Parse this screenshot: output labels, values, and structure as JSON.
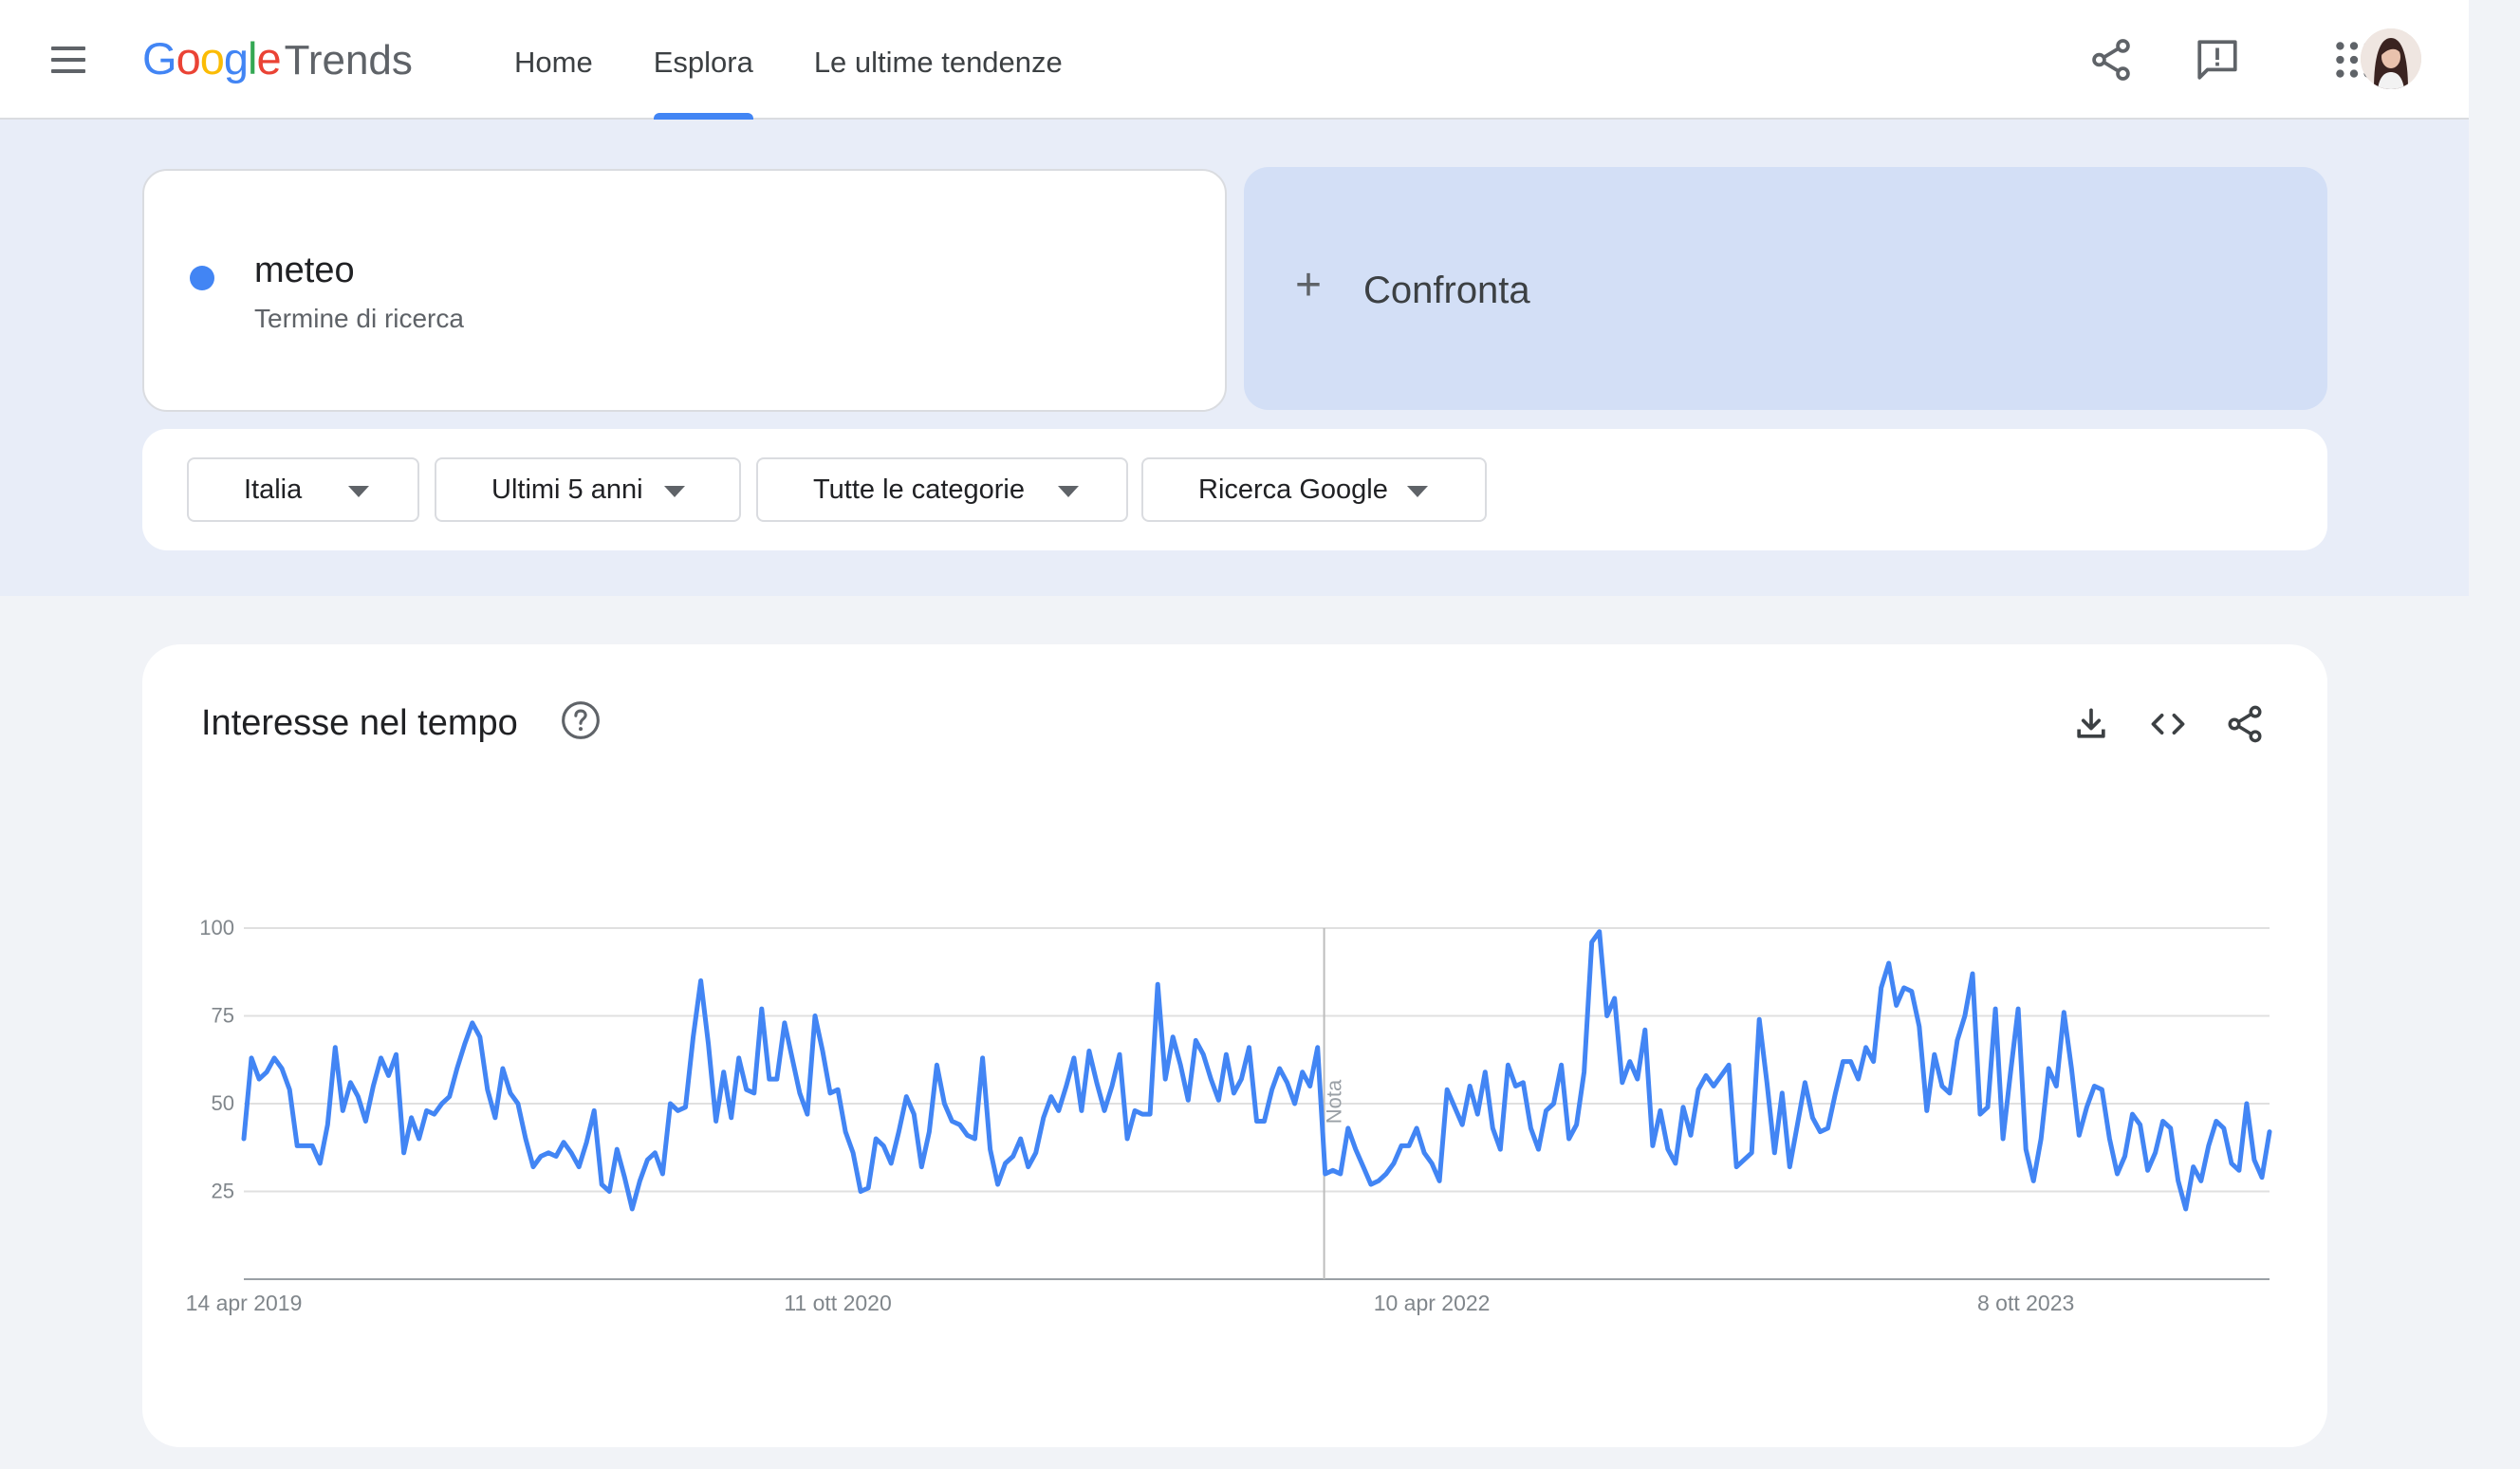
{
  "header": {
    "logo_google": "Google",
    "logo_trends": "Trends",
    "nav": [
      {
        "label": "Home",
        "active": false
      },
      {
        "label": "Esplora",
        "active": true
      },
      {
        "label": "Le ultime tendenze",
        "active": false
      }
    ],
    "icons": [
      "menu-icon",
      "share-icon",
      "feedback-icon",
      "apps-grid-icon",
      "avatar"
    ]
  },
  "search": {
    "term": "meteo",
    "term_type": "Termine di ricerca",
    "term_color": "#4285f4",
    "compare_label": "Confronta",
    "compare_icon": "plus-icon"
  },
  "filters": {
    "region": "Italia",
    "period": "Ultimi 5 anni",
    "category": "Tutte le categorie",
    "property": "Ricerca Google"
  },
  "chart_card": {
    "title": "Interesse nel tempo",
    "icons": [
      "help-icon",
      "download-icon",
      "embed-icon",
      "share-icon"
    ],
    "note_label": "Nota"
  },
  "chart_data": {
    "type": "line",
    "title": "Interesse nel tempo",
    "xlabel": "",
    "ylabel": "",
    "ylim": [
      0,
      100
    ],
    "yticks": [
      25,
      50,
      75,
      100
    ],
    "grid": true,
    "line_color": "#4285f4",
    "x_start": "14 apr 2019",
    "x_end": "14 apr 2024",
    "xtick_labels": [
      {
        "date": "2019-04-14",
        "label": "14 apr 2019"
      },
      {
        "date": "2020-10-11",
        "label": "11 ott 2020"
      },
      {
        "date": "2022-04-10",
        "label": "10 apr 2022"
      },
      {
        "date": "2023-10-08",
        "label": "8 ott 2023"
      }
    ],
    "note": {
      "date": "2022-01-01",
      "label": "Nota"
    },
    "series": [
      {
        "name": "meteo",
        "values": [
          40,
          63,
          57,
          59,
          63,
          60,
          54,
          38,
          38,
          38,
          33,
          44,
          66,
          48,
          56,
          52,
          45,
          55,
          63,
          58,
          64,
          36,
          46,
          40,
          48,
          47,
          50,
          52,
          60,
          67,
          73,
          69,
          54,
          46,
          60,
          53,
          50,
          40,
          32,
          35,
          36,
          35,
          39,
          36,
          32,
          39,
          48,
          27,
          25,
          37,
          29,
          20,
          28,
          34,
          36,
          30,
          50,
          48,
          49,
          69,
          85,
          67,
          45,
          59,
          46,
          63,
          54,
          53,
          77,
          57,
          57,
          73,
          63,
          53,
          47,
          75,
          65,
          53,
          54,
          42,
          36,
          25,
          26,
          40,
          38,
          33,
          42,
          52,
          47,
          32,
          42,
          61,
          50,
          45,
          44,
          41,
          40,
          63,
          37,
          27,
          33,
          35,
          40,
          32,
          36,
          46,
          52,
          48,
          55,
          63,
          48,
          65,
          56,
          48,
          55,
          64,
          40,
          48,
          47,
          47,
          84,
          57,
          69,
          61,
          51,
          68,
          64,
          57,
          51,
          64,
          53,
          57,
          66,
          45,
          45,
          54,
          60,
          56,
          50,
          59,
          55,
          66,
          30,
          31,
          30,
          43,
          37,
          32,
          27,
          28,
          30,
          33,
          38,
          38,
          43,
          36,
          33,
          28,
          54,
          49,
          44,
          55,
          47,
          59,
          43,
          37,
          61,
          55,
          56,
          43,
          37,
          48,
          50,
          61,
          40,
          44,
          59,
          96,
          99,
          75,
          80,
          56,
          62,
          57,
          71,
          38,
          48,
          37,
          33,
          49,
          41,
          54,
          58,
          55,
          58,
          61,
          32,
          34,
          36,
          74,
          56,
          36,
          53,
          32,
          44,
          56,
          46,
          42,
          43,
          53,
          62,
          62,
          57,
          66,
          62,
          83,
          90,
          78,
          83,
          82,
          72,
          48,
          64,
          55,
          53,
          68,
          75,
          87,
          47,
          49,
          77,
          40,
          59,
          77,
          37,
          28,
          40,
          60,
          55,
          76,
          60,
          41,
          49,
          55,
          54,
          40,
          30,
          35,
          47,
          44,
          31,
          36,
          45,
          43,
          28,
          20,
          32,
          28,
          38,
          45,
          43,
          33,
          31,
          50,
          34,
          29,
          42
        ]
      }
    ]
  }
}
